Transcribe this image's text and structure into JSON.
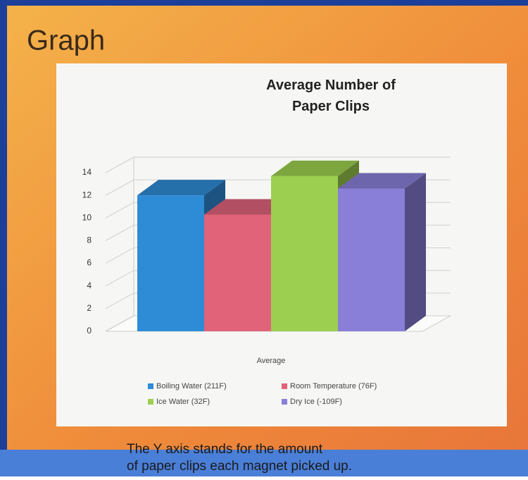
{
  "slide_title": "Graph",
  "chart_data": {
    "type": "bar3d",
    "title": "Average Number of Paper Clips",
    "categories": [
      "Average"
    ],
    "series": [
      {
        "name": "Boiling Water (211F)",
        "color": "#2e8bd6",
        "values": [
          12
        ]
      },
      {
        "name": "Room Temperature (76F)",
        "color": "#e0637a",
        "values": [
          10.3
        ]
      },
      {
        "name": "Ice Water (32F)",
        "color": "#9ccf4f",
        "values": [
          13.7
        ]
      },
      {
        "name": "Dry Ice (-109F)",
        "color": "#8a7fd8",
        "values": [
          12.6
        ]
      }
    ],
    "ylim": [
      0,
      14
    ],
    "yticks": [
      0,
      2,
      4,
      6,
      8,
      10,
      12,
      14
    ],
    "grid": true,
    "legend": "bottom"
  },
  "caption": "The Y axis stands for the amount of paper clips each magnet picked up."
}
